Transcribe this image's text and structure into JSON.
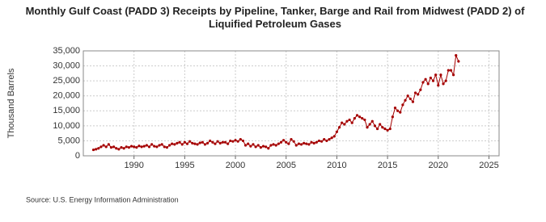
{
  "chart_data": {
    "type": "line",
    "title": "Monthly Gulf Coast (PADD 3) Receipts by Pipeline, Tanker, Barge and Rail from Midwest (PADD 2) of Liquified Petroleum Gases",
    "y_label": "Thousand Barrels",
    "source": "Source: U.S. Energy Information Administration",
    "x": [
      1986,
      1986.25,
      1986.5,
      1986.75,
      1987,
      1987.25,
      1987.5,
      1987.75,
      1988,
      1988.25,
      1988.5,
      1988.75,
      1989,
      1989.25,
      1989.5,
      1989.75,
      1990,
      1990.25,
      1990.5,
      1990.75,
      1991,
      1991.25,
      1991.5,
      1991.75,
      1992,
      1992.25,
      1992.5,
      1992.75,
      1993,
      1993.25,
      1993.5,
      1993.75,
      1994,
      1994.25,
      1994.5,
      1994.75,
      1995,
      1995.25,
      1995.5,
      1995.75,
      1996,
      1996.25,
      1996.5,
      1996.75,
      1997,
      1997.25,
      1997.5,
      1997.75,
      1998,
      1998.25,
      1998.5,
      1998.75,
      1999,
      1999.25,
      1999.5,
      1999.75,
      2000,
      2000.25,
      2000.5,
      2000.75,
      2001,
      2001.25,
      2001.5,
      2001.75,
      2002,
      2002.25,
      2002.5,
      2002.75,
      2003,
      2003.25,
      2003.5,
      2003.75,
      2004,
      2004.25,
      2004.5,
      2004.75,
      2005,
      2005.25,
      2005.5,
      2005.75,
      2006,
      2006.25,
      2006.5,
      2006.75,
      2007,
      2007.25,
      2007.5,
      2007.75,
      2008,
      2008.25,
      2008.5,
      2008.75,
      2009,
      2009.25,
      2009.5,
      2009.75,
      2010,
      2010.25,
      2010.5,
      2010.75,
      2011,
      2011.25,
      2011.5,
      2011.75,
      2012,
      2012.25,
      2012.5,
      2012.75,
      2013,
      2013.25,
      2013.5,
      2013.75,
      2014,
      2014.25,
      2014.5,
      2014.75,
      2015,
      2015.25,
      2015.5,
      2015.75,
      2016,
      2016.25,
      2016.5,
      2016.75,
      2017,
      2017.25,
      2017.5,
      2017.75,
      2018,
      2018.25,
      2018.5,
      2018.75,
      2019,
      2019.25,
      2019.5,
      2019.75,
      2020,
      2020.25,
      2020.5,
      2020.75,
      2021,
      2021.25,
      2021.5,
      2021.75,
      2022
    ],
    "series": [
      {
        "name": "Receipts",
        "color": "#a50000",
        "values": [
          2000,
          2200,
          2500,
          3000,
          3500,
          3000,
          3800,
          2800,
          3000,
          2500,
          2200,
          2800,
          2500,
          3000,
          2800,
          3200,
          3000,
          2800,
          3300,
          3000,
          3200,
          3500,
          3000,
          3800,
          3200,
          3000,
          3500,
          3800,
          3000,
          2800,
          3500,
          4000,
          3800,
          4200,
          4500,
          3800,
          4500,
          4000,
          4800,
          4200,
          4000,
          3800,
          4300,
          4500,
          3800,
          4200,
          5000,
          4500,
          4000,
          4800,
          4200,
          4500,
          4500,
          4000,
          5000,
          4800,
          5200,
          4800,
          5500,
          5000,
          3500,
          4000,
          3200,
          3800,
          3000,
          3500,
          2800,
          3200,
          3000,
          2500,
          3500,
          3800,
          3500,
          4000,
          4500,
          5200,
          4500,
          4000,
          5500,
          4800,
          3500,
          4000,
          3800,
          4200,
          4000,
          3800,
          4500,
          4200,
          4500,
          5000,
          4800,
          5500,
          5000,
          5500,
          6000,
          6500,
          8000,
          9500,
          11000,
          10500,
          11500,
          12000,
          11000,
          12500,
          13500,
          13000,
          12500,
          12000,
          9500,
          10500,
          11500,
          10000,
          9000,
          10500,
          9500,
          9000,
          8500,
          9000,
          13000,
          16000,
          15000,
          14500,
          17000,
          18500,
          20000,
          19000,
          18000,
          21000,
          20500,
          22000,
          24500,
          25500,
          24000,
          26000,
          25000,
          27000,
          23500,
          27000,
          24000,
          25000,
          28500,
          28500,
          27000,
          33500,
          31500
        ]
      }
    ],
    "xlim": [
      1985,
      2026
    ],
    "xticks": [
      1990,
      1995,
      2000,
      2005,
      2010,
      2015,
      2020,
      2025
    ],
    "ylim": [
      0,
      35000
    ],
    "yticks": [
      0,
      {
        "value": 5000,
        "label": "5,000"
      },
      {
        "value": 10000,
        "label": "10,000"
      },
      {
        "value": 15000,
        "label": "15,000"
      },
      {
        "value": 20000,
        "label": "20,000"
      },
      {
        "value": 25000,
        "label": "25,000"
      },
      {
        "value": 30000,
        "label": "30,000"
      },
      {
        "value": 35000,
        "label": "35,000"
      }
    ],
    "grid": true
  }
}
